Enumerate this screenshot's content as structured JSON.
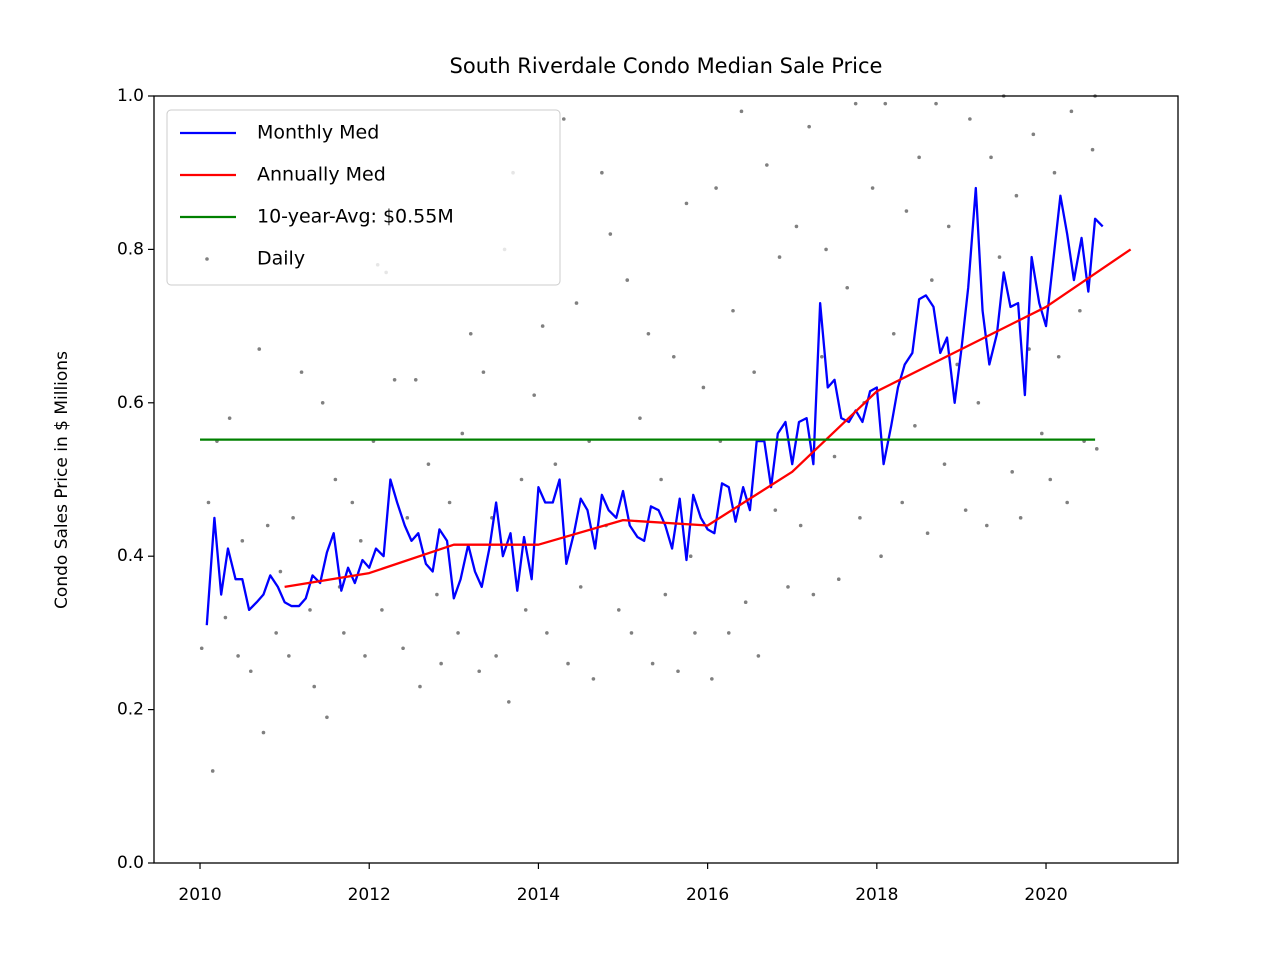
{
  "chart_data": {
    "type": "line",
    "title": "South Riverdale Condo Median Sale Price",
    "ylabel": "Condo Sales Price in $ Millions",
    "xlim": [
      2009.456,
      2021.56
    ],
    "ylim": [
      0,
      1
    ],
    "xticks": [
      2010,
      2012,
      2014,
      2016,
      2018,
      2020
    ],
    "yticks": [
      {
        "value": 0,
        "label": "0.0"
      },
      0.2,
      0.4,
      0.6,
      0.8,
      {
        "value": 1,
        "label": "1.0"
      }
    ],
    "grid": false,
    "legend": "upper left",
    "series": [
      {
        "name": "Monthly Med",
        "kind": "line",
        "color": "#0000ff",
        "x": [
          2010.08,
          2010.17,
          2010.25,
          2010.33,
          2010.42,
          2010.5,
          2010.58,
          2010.67,
          2010.75,
          2010.83,
          2010.92,
          2011.0,
          2011.08,
          2011.17,
          2011.25,
          2011.33,
          2011.42,
          2011.5,
          2011.58,
          2011.67,
          2011.75,
          2011.83,
          2011.92,
          2012.0,
          2012.08,
          2012.17,
          2012.25,
          2012.33,
          2012.42,
          2012.5,
          2012.58,
          2012.67,
          2012.75,
          2012.83,
          2012.92,
          2013.0,
          2013.08,
          2013.17,
          2013.25,
          2013.33,
          2013.42,
          2013.5,
          2013.58,
          2013.67,
          2013.75,
          2013.83,
          2013.92,
          2014.0,
          2014.08,
          2014.17,
          2014.25,
          2014.33,
          2014.42,
          2014.5,
          2014.58,
          2014.67,
          2014.75,
          2014.83,
          2014.92,
          2015.0,
          2015.08,
          2015.17,
          2015.25,
          2015.33,
          2015.42,
          2015.5,
          2015.58,
          2015.67,
          2015.75,
          2015.83,
          2015.92,
          2016.0,
          2016.08,
          2016.17,
          2016.25,
          2016.33,
          2016.42,
          2016.5,
          2016.58,
          2016.67,
          2016.75,
          2016.83,
          2016.92,
          2017.0,
          2017.08,
          2017.17,
          2017.25,
          2017.33,
          2017.42,
          2017.5,
          2017.58,
          2017.67,
          2017.75,
          2017.83,
          2017.92,
          2018.0,
          2018.08,
          2018.17,
          2018.25,
          2018.33,
          2018.42,
          2018.5,
          2018.58,
          2018.67,
          2018.75,
          2018.83,
          2018.92,
          2019.0,
          2019.08,
          2019.17,
          2019.25,
          2019.33,
          2019.42,
          2019.5,
          2019.58,
          2019.67,
          2019.75,
          2019.83,
          2019.92,
          2020.0,
          2020.08,
          2020.17,
          2020.25,
          2020.33,
          2020.42,
          2020.5,
          2020.58,
          2020.67
        ],
        "values": [
          0.31,
          0.45,
          0.35,
          0.41,
          0.37,
          0.37,
          0.33,
          0.34,
          0.35,
          0.375,
          0.36,
          0.34,
          0.335,
          0.335,
          0.345,
          0.375,
          0.365,
          0.405,
          0.43,
          0.355,
          0.385,
          0.365,
          0.395,
          0.385,
          0.41,
          0.4,
          0.5,
          0.47,
          0.44,
          0.42,
          0.43,
          0.39,
          0.38,
          0.435,
          0.42,
          0.345,
          0.37,
          0.415,
          0.38,
          0.36,
          0.41,
          0.47,
          0.4,
          0.43,
          0.355,
          0.425,
          0.37,
          0.49,
          0.47,
          0.47,
          0.5,
          0.39,
          0.43,
          0.475,
          0.46,
          0.41,
          0.48,
          0.46,
          0.45,
          0.485,
          0.44,
          0.425,
          0.42,
          0.465,
          0.46,
          0.44,
          0.41,
          0.475,
          0.395,
          0.48,
          0.45,
          0.435,
          0.43,
          0.495,
          0.49,
          0.445,
          0.49,
          0.46,
          0.55,
          0.55,
          0.49,
          0.56,
          0.575,
          0.52,
          0.575,
          0.58,
          0.52,
          0.73,
          0.62,
          0.63,
          0.58,
          0.575,
          0.59,
          0.575,
          0.615,
          0.62,
          0.52,
          0.57,
          0.62,
          0.65,
          0.665,
          0.735,
          0.74,
          0.725,
          0.665,
          0.685,
          0.6,
          0.67,
          0.75,
          0.88,
          0.72,
          0.65,
          0.69,
          0.77,
          0.725,
          0.73,
          0.61,
          0.79,
          0.73,
          0.7,
          0.78,
          0.87,
          0.82,
          0.76,
          0.815,
          0.745,
          0.84,
          0.83
        ]
      },
      {
        "name": "Annually Med",
        "kind": "line",
        "color": "#ff0000",
        "x": [
          2011,
          2012,
          2013,
          2014,
          2015,
          2016,
          2017,
          2018,
          2019,
          2020,
          2021
        ],
        "values": [
          0.36,
          0.378,
          0.415,
          0.415,
          0.447,
          0.44,
          0.51,
          0.615,
          0.67,
          0.725,
          0.8
        ]
      },
      {
        "name": "10-year-Avg: $0.55M",
        "kind": "line",
        "color": "#008000",
        "x": [
          2010,
          2020.58
        ],
        "values": [
          0.552,
          0.552
        ]
      },
      {
        "name": "Daily",
        "kind": "scatter",
        "color": "#808080",
        "x": [
          2010.02,
          2010.1,
          2010.15,
          2010.2,
          2010.3,
          2010.35,
          2010.45,
          2010.5,
          2010.6,
          2010.7,
          2010.75,
          2010.8,
          2010.9,
          2010.95,
          2011.05,
          2011.1,
          2011.2,
          2011.3,
          2011.35,
          2011.45,
          2011.5,
          2011.6,
          2011.65,
          2011.7,
          2011.8,
          2011.9,
          2011.95,
          2012.05,
          2012.1,
          2012.15,
          2012.2,
          2012.3,
          2012.4,
          2012.45,
          2012.55,
          2012.6,
          2012.7,
          2012.8,
          2012.85,
          2012.95,
          2013.05,
          2013.1,
          2013.2,
          2013.3,
          2013.35,
          2013.45,
          2013.5,
          2013.6,
          2013.65,
          2013.7,
          2013.8,
          2013.85,
          2013.95,
          2014.05,
          2014.1,
          2014.2,
          2014.3,
          2014.35,
          2014.45,
          2014.5,
          2014.6,
          2014.65,
          2014.75,
          2014.8,
          2014.85,
          2014.95,
          2015.05,
          2015.1,
          2015.2,
          2015.3,
          2015.35,
          2015.45,
          2015.5,
          2015.6,
          2015.65,
          2015.75,
          2015.8,
          2015.85,
          2015.95,
          2016.05,
          2016.1,
          2016.15,
          2016.25,
          2016.3,
          2016.4,
          2016.45,
          2016.55,
          2016.6,
          2016.7,
          2016.8,
          2016.85,
          2016.95,
          2017.05,
          2017.1,
          2017.2,
          2017.25,
          2017.35,
          2017.4,
          2017.5,
          2017.55,
          2017.65,
          2017.75,
          2017.8,
          2017.85,
          2017.95,
          2018.05,
          2018.1,
          2018.2,
          2018.3,
          2018.35,
          2018.45,
          2018.5,
          2018.6,
          2018.65,
          2018.7,
          2018.8,
          2018.85,
          2018.95,
          2019.05,
          2019.1,
          2019.2,
          2019.3,
          2019.35,
          2019.45,
          2019.5,
          2019.6,
          2019.65,
          2019.7,
          2019.8,
          2019.85,
          2019.95,
          2020.05,
          2020.1,
          2020.15,
          2020.25,
          2020.3,
          2020.4,
          2020.45,
          2020.55,
          2020.6,
          2020.58
        ],
        "values": [
          0.28,
          0.47,
          0.12,
          0.55,
          0.32,
          0.58,
          0.27,
          0.42,
          0.25,
          0.67,
          0.17,
          0.44,
          0.3,
          0.38,
          0.27,
          0.45,
          0.64,
          0.33,
          0.23,
          0.6,
          0.19,
          0.5,
          0.36,
          0.3,
          0.47,
          0.42,
          0.27,
          0.55,
          0.78,
          0.33,
          0.77,
          0.63,
          0.28,
          0.45,
          0.63,
          0.23,
          0.52,
          0.35,
          0.26,
          0.47,
          0.3,
          0.56,
          0.69,
          0.25,
          0.64,
          0.45,
          0.27,
          0.8,
          0.21,
          0.9,
          0.5,
          0.33,
          0.61,
          0.7,
          0.3,
          0.52,
          0.97,
          0.26,
          0.73,
          0.36,
          0.55,
          0.24,
          0.9,
          0.44,
          0.82,
          0.33,
          0.76,
          0.3,
          0.58,
          0.69,
          0.26,
          0.5,
          0.35,
          0.66,
          0.25,
          0.86,
          0.4,
          0.3,
          0.62,
          0.24,
          0.88,
          0.55,
          0.3,
          0.72,
          0.98,
          0.34,
          0.64,
          0.27,
          0.91,
          0.46,
          0.79,
          0.36,
          0.83,
          0.44,
          0.96,
          0.35,
          0.66,
          0.8,
          0.53,
          0.37,
          0.75,
          0.99,
          0.45,
          0.6,
          0.88,
          0.4,
          0.99,
          0.69,
          0.47,
          0.85,
          0.57,
          0.92,
          0.43,
          0.76,
          0.99,
          0.52,
          0.83,
          0.65,
          0.46,
          0.97,
          0.6,
          0.44,
          0.92,
          0.79,
          1.0,
          0.51,
          0.87,
          0.45,
          0.67,
          0.95,
          0.56,
          0.5,
          0.9,
          0.66,
          0.47,
          0.98,
          0.72,
          0.55,
          0.93,
          0.54,
          1.0
        ]
      }
    ]
  }
}
